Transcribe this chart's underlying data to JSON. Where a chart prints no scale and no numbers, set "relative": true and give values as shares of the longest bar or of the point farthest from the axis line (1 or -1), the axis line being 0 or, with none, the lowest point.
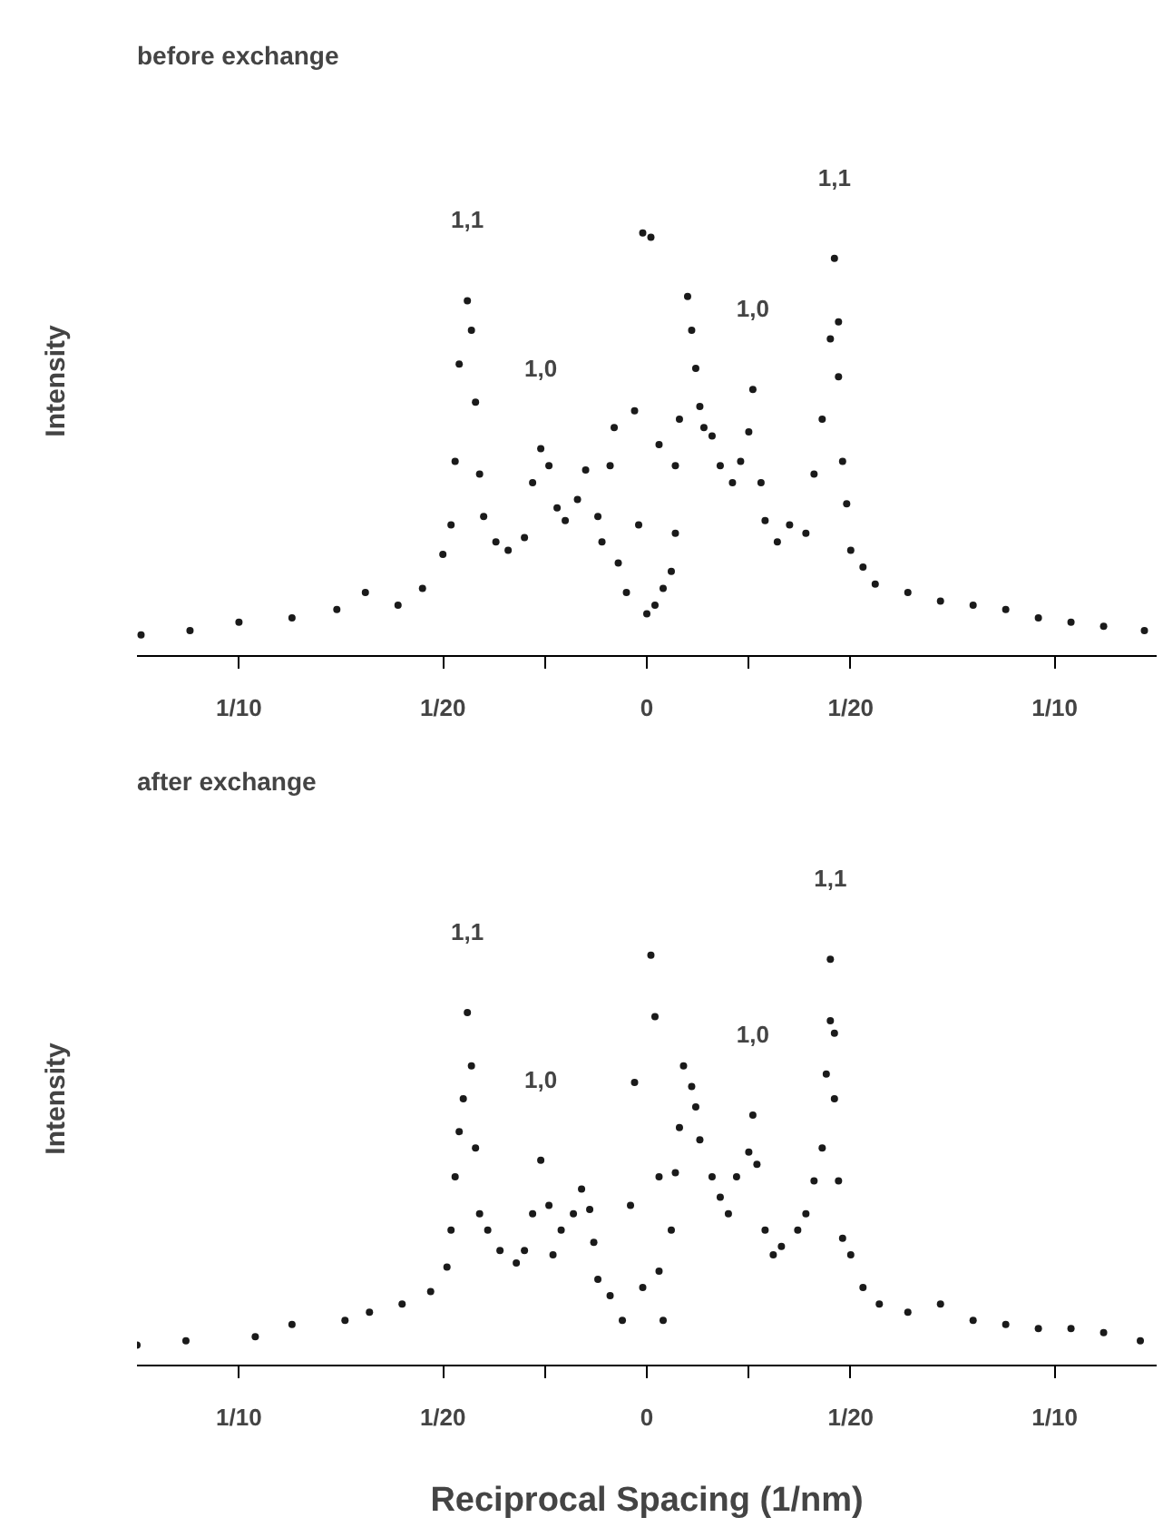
{
  "chart_data": [
    {
      "type": "scatter",
      "title": "before exchange",
      "ylabel": "Intensity",
      "relative": true,
      "marker": "circle",
      "grid": false,
      "xlim": [
        -0.125,
        0.125
      ],
      "xticks": [
        {
          "value": -0.1,
          "label": "1/10"
        },
        {
          "value": -0.05,
          "label": "1/20"
        },
        {
          "value": -0.025,
          "label": null
        },
        {
          "value": 0,
          "label": "0"
        },
        {
          "value": 0.025,
          "label": null
        },
        {
          "value": 0.05,
          "label": "1/20"
        },
        {
          "value": 0.1,
          "label": "1/10"
        }
      ],
      "annotations": [
        {
          "text": "1,1",
          "x": -0.044,
          "y": 0.84
        },
        {
          "text": "1,0",
          "x": -0.026,
          "y": 0.49
        },
        {
          "text": "1,0",
          "x": 0.026,
          "y": 0.63
        },
        {
          "text": "1,1",
          "x": 0.046,
          "y": 0.94
        }
      ],
      "series": [
        {
          "color": "#1a1a1a",
          "x": [
            -0.124,
            -0.112,
            -0.1,
            -0.087,
            -0.076,
            -0.069,
            -0.061,
            -0.055,
            -0.05,
            -0.048,
            -0.047,
            -0.046,
            -0.044,
            -0.043,
            -0.042,
            -0.041,
            -0.04,
            -0.037,
            -0.034,
            -0.03,
            -0.028,
            -0.026,
            -0.024,
            -0.022,
            -0.02,
            -0.017,
            -0.015,
            -0.012,
            -0.011,
            -0.009,
            -0.008,
            -0.007,
            -0.005,
            -0.003,
            -0.002,
            0.0,
            -0.001,
            0.001,
            0.002,
            0.003,
            0.004,
            0.006,
            0.007,
            0.007,
            0.008,
            0.01,
            0.011,
            0.012,
            0.013,
            0.014,
            0.016,
            0.018,
            0.021,
            0.023,
            0.025,
            0.026,
            0.028,
            0.029,
            0.032,
            0.035,
            0.039,
            0.041,
            0.043,
            0.045,
            0.046,
            0.047,
            0.047,
            0.048,
            0.049,
            0.05,
            0.053,
            0.056,
            0.064,
            0.072,
            0.08,
            0.088,
            0.096,
            0.104,
            0.112,
            0.122
          ],
          "values": [
            0.05,
            0.06,
            0.08,
            0.09,
            0.11,
            0.15,
            0.12,
            0.16,
            0.24,
            0.31,
            0.46,
            0.69,
            0.84,
            0.77,
            0.6,
            0.43,
            0.33,
            0.27,
            0.25,
            0.28,
            0.41,
            0.49,
            0.45,
            0.35,
            0.32,
            0.37,
            0.44,
            0.33,
            0.27,
            0.45,
            0.54,
            0.22,
            0.15,
            0.58,
            0.31,
            0.1,
            1.0,
            0.99,
            0.12,
            0.5,
            0.16,
            0.2,
            0.29,
            0.45,
            0.56,
            0.85,
            0.77,
            0.68,
            0.59,
            0.54,
            0.52,
            0.45,
            0.41,
            0.46,
            0.53,
            0.63,
            0.41,
            0.32,
            0.27,
            0.31,
            0.29,
            0.43,
            0.56,
            0.75,
            0.94,
            0.79,
            0.66,
            0.46,
            0.36,
            0.25,
            0.21,
            0.17,
            0.15,
            0.13,
            0.12,
            0.11,
            0.09,
            0.08,
            0.07,
            0.06
          ]
        }
      ]
    },
    {
      "type": "scatter",
      "title": "after exchange",
      "ylabel": "Intensity",
      "xlabel": "Reciprocal Spacing (1/nm)",
      "relative": true,
      "marker": "circle",
      "grid": false,
      "xlim": [
        -0.125,
        0.125
      ],
      "xticks": [
        {
          "value": -0.1,
          "label": "1/10"
        },
        {
          "value": -0.05,
          "label": "1/20"
        },
        {
          "value": -0.025,
          "label": null
        },
        {
          "value": 0,
          "label": "0"
        },
        {
          "value": 0.025,
          "label": null
        },
        {
          "value": 0.05,
          "label": "1/20"
        },
        {
          "value": 0.1,
          "label": "1/10"
        }
      ],
      "annotations": [
        {
          "text": "1,1",
          "x": -0.044,
          "y": 0.86
        },
        {
          "text": "1,0",
          "x": -0.026,
          "y": 0.5
        },
        {
          "text": "1,0",
          "x": 0.026,
          "y": 0.61
        },
        {
          "text": "1,1",
          "x": 0.045,
          "y": 0.99
        }
      ],
      "series": [
        {
          "color": "#1a1a1a",
          "x": [
            -0.125,
            -0.113,
            -0.096,
            -0.087,
            -0.074,
            -0.068,
            -0.06,
            -0.053,
            -0.049,
            -0.048,
            -0.047,
            -0.046,
            -0.045,
            -0.044,
            -0.043,
            -0.042,
            -0.041,
            -0.039,
            -0.036,
            -0.032,
            -0.03,
            -0.028,
            -0.026,
            -0.024,
            -0.023,
            -0.021,
            -0.018,
            -0.016,
            -0.014,
            -0.013,
            -0.012,
            -0.009,
            -0.006,
            -0.004,
            -0.003,
            -0.001,
            0.001,
            0.002,
            0.003,
            0.003,
            0.004,
            0.006,
            0.007,
            0.008,
            0.009,
            0.011,
            0.012,
            0.013,
            0.016,
            0.018,
            0.02,
            0.022,
            0.025,
            0.026,
            0.027,
            0.029,
            0.031,
            0.033,
            0.037,
            0.039,
            0.041,
            0.043,
            0.044,
            0.045,
            0.045,
            0.046,
            0.046,
            0.047,
            0.048,
            0.05,
            0.053,
            0.057,
            0.064,
            0.072,
            0.08,
            0.088,
            0.096,
            0.104,
            0.112,
            0.121
          ],
          "values": [
            0.05,
            0.06,
            0.07,
            0.1,
            0.11,
            0.13,
            0.15,
            0.18,
            0.24,
            0.33,
            0.46,
            0.57,
            0.65,
            0.86,
            0.73,
            0.53,
            0.37,
            0.33,
            0.28,
            0.25,
            0.28,
            0.37,
            0.5,
            0.39,
            0.27,
            0.33,
            0.37,
            0.43,
            0.38,
            0.3,
            0.21,
            0.17,
            0.11,
            0.39,
            0.69,
            0.19,
            1.0,
            0.85,
            0.46,
            0.23,
            0.11,
            0.33,
            0.47,
            0.58,
            0.73,
            0.68,
            0.63,
            0.55,
            0.46,
            0.41,
            0.37,
            0.46,
            0.52,
            0.61,
            0.49,
            0.33,
            0.27,
            0.29,
            0.33,
            0.37,
            0.45,
            0.53,
            0.71,
            0.84,
            0.99,
            0.81,
            0.65,
            0.45,
            0.31,
            0.27,
            0.19,
            0.15,
            0.13,
            0.15,
            0.11,
            0.1,
            0.09,
            0.09,
            0.08,
            0.06
          ]
        }
      ]
    }
  ]
}
